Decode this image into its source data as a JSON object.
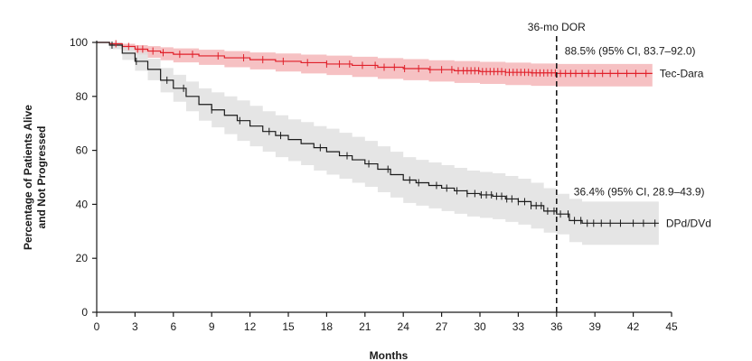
{
  "chart_data": {
    "type": "line",
    "title": "",
    "xlabel": "Months",
    "ylabel_line1": "Percentage of Patients Alive",
    "ylabel_line2": "and Not  Progressed",
    "xlim": [
      0,
      45
    ],
    "ylim": [
      0,
      100
    ],
    "xticks": [
      0,
      3,
      6,
      9,
      12,
      15,
      18,
      21,
      24,
      27,
      30,
      33,
      36,
      39,
      42,
      45
    ],
    "yticks": [
      0,
      20,
      40,
      60,
      80,
      100
    ],
    "grid": false,
    "vline": {
      "x": 36,
      "label": "36-mo DOR"
    },
    "series": [
      {
        "name": "Tec-Dara",
        "color": "#e0202a",
        "band_color": "#f4b6b8",
        "annotation": "88.5% (95% CI, 83.7–92.0)",
        "x": [
          0,
          1,
          2,
          3,
          4,
          5,
          6,
          8,
          10,
          12,
          14,
          16,
          18,
          20,
          22,
          24,
          26,
          28,
          30,
          32,
          34,
          36,
          38,
          40,
          42,
          43.5
        ],
        "y": [
          100,
          99.5,
          98.5,
          97.5,
          96.8,
          96.2,
          95.6,
          95.0,
          94.3,
          93.6,
          93.0,
          92.5,
          92.0,
          91.5,
          90.8,
          90.3,
          89.9,
          89.5,
          89.2,
          88.9,
          88.7,
          88.5,
          88.5,
          88.5,
          88.5,
          88.5
        ],
        "lower": [
          100,
          98.8,
          97.0,
          95.5,
          94.3,
          93.4,
          92.6,
          91.7,
          90.8,
          90.0,
          89.2,
          88.5,
          87.9,
          87.2,
          86.5,
          86.0,
          85.5,
          85.0,
          84.6,
          84.2,
          83.9,
          83.7,
          83.7,
          83.7,
          83.7,
          83.7
        ],
        "upper": [
          100,
          100,
          99.5,
          99.0,
          98.6,
          98.2,
          97.8,
          97.3,
          96.8,
          96.3,
          95.9,
          95.5,
          95.1,
          94.7,
          94.2,
          93.8,
          93.4,
          93.1,
          92.8,
          92.5,
          92.2,
          92.0,
          92.0,
          92.0,
          92.0,
          92.0
        ],
        "censor_x": [
          1.5,
          2.5,
          3.2,
          3.6,
          4.4,
          5.2,
          6.5,
          7.5,
          9.5,
          11.5,
          13,
          14.6,
          16.5,
          18,
          19,
          19.8,
          20.8,
          21.8,
          22.5,
          23.3,
          24.1,
          25.2,
          26.1,
          27,
          27.8,
          28.3,
          28.7,
          29,
          29.3,
          29.6,
          29.9,
          30.2,
          30.5,
          30.8,
          31.1,
          31.4,
          31.7,
          32,
          32.3,
          32.6,
          32.9,
          33.2,
          33.5,
          33.8,
          34.1,
          34.4,
          34.7,
          35,
          35.3,
          35.6,
          35.9,
          36.3,
          36.7,
          37.1,
          37.5,
          38,
          38.5,
          39,
          39.6,
          40.2,
          40.8,
          41.5,
          42.2,
          43
        ]
      },
      {
        "name": "DPd/DVd",
        "color": "#1a1a1a",
        "band_color": "#e0e0e0",
        "annotation": "36.4% (95% CI, 28.9–43.9)",
        "x": [
          0,
          1,
          2,
          3,
          4,
          5,
          6,
          7,
          8,
          9,
          10,
          11,
          12,
          13,
          14,
          15,
          16,
          17,
          18,
          19,
          20,
          21,
          22,
          23,
          24,
          25,
          26,
          27,
          28,
          29,
          30,
          31,
          32,
          33,
          34,
          35,
          36,
          37,
          38,
          40,
          42,
          44
        ],
        "y": [
          100,
          99,
          96,
          93,
          90,
          86,
          83,
          80,
          77,
          75,
          73,
          71,
          69,
          67,
          65.5,
          64,
          62.5,
          61,
          59.5,
          58,
          56.5,
          55,
          53,
          51,
          49,
          48,
          47,
          46,
          45,
          44,
          43.5,
          43,
          42,
          41,
          39.5,
          37.5,
          36.4,
          34,
          33,
          33,
          33,
          33
        ],
        "lower": [
          100,
          97.5,
          93.5,
          89.5,
          86,
          81.5,
          78,
          74.5,
          71,
          68.5,
          66,
          63.5,
          61.5,
          59.5,
          57.5,
          56,
          54.5,
          52.5,
          51,
          49.5,
          48,
          46.5,
          44.5,
          42.5,
          40.5,
          39.5,
          38.5,
          37.5,
          36.5,
          35.5,
          35,
          34.5,
          33.5,
          32.5,
          31,
          29.5,
          28.9,
          26,
          25,
          25,
          25,
          25
        ],
        "upper": [
          100,
          100,
          98.5,
          96.5,
          94,
          90.5,
          88,
          85.5,
          83,
          81.5,
          80,
          78.5,
          76.5,
          74.5,
          73,
          71.5,
          70.5,
          69,
          68,
          66.5,
          65,
          63.5,
          61.5,
          59.5,
          57.5,
          56.5,
          55.5,
          54.5,
          53.5,
          52.5,
          52,
          51.5,
          50.5,
          49.5,
          48,
          46,
          43.9,
          42,
          41,
          41,
          41,
          41
        ],
        "censor_x": [
          1.2,
          3.1,
          5.5,
          6.8,
          9.0,
          11.2,
          13.5,
          14.4,
          17.5,
          19.6,
          21.3,
          22.8,
          24.5,
          25.2,
          26.6,
          27.4,
          28.2,
          29,
          29.6,
          30.1,
          30.5,
          30.9,
          31.3,
          31.7,
          32.1,
          32.5,
          33,
          33.5,
          34,
          34.4,
          34.8,
          35.3,
          35.8,
          36.3,
          36.9,
          37.4,
          37.9,
          38.4,
          38.9,
          39.5,
          40.2,
          41,
          42,
          42.8,
          43.7
        ]
      }
    ]
  }
}
